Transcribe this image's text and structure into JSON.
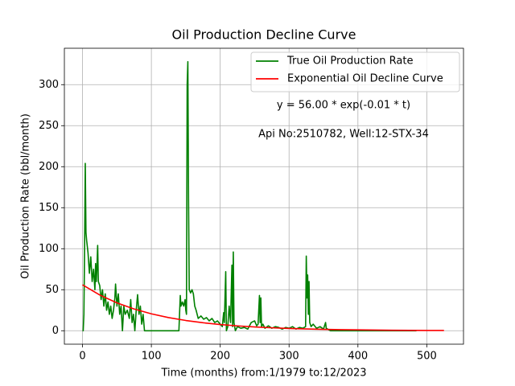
{
  "chart_data": {
    "type": "line",
    "title": "Oil Production Decline Curve",
    "xlabel": "Time (months) from:1/1979 to:12/2023",
    "ylabel": "Oil Production Rate (bbl/month)",
    "annotations": [
      "y = 56.00 * exp(-0.01 * t)",
      "Api No:2510782, Well:12-STX-34"
    ],
    "xlim": [
      -26.35,
      553.35
    ],
    "ylim": [
      -16.4,
      344.4
    ],
    "xticks": [
      0,
      100,
      200,
      300,
      400,
      500
    ],
    "yticks": [
      0,
      50,
      100,
      150,
      200,
      250,
      300
    ],
    "grid": true,
    "legend": "upper right",
    "series": [
      {
        "name": "True Oil Production Rate",
        "color": "#008000",
        "x": [
          0,
          1,
          2,
          3,
          4,
          5,
          6,
          8,
          10,
          12,
          14,
          16,
          18,
          19,
          20,
          21,
          22,
          23,
          25,
          27,
          29,
          31,
          33,
          35,
          37,
          39,
          41,
          43,
          45,
          47,
          48,
          50,
          52,
          54,
          56,
          58,
          60,
          62,
          65,
          68,
          70,
          72,
          74,
          76,
          78,
          80,
          82,
          84,
          86,
          88,
          90,
          100,
          120,
          140,
          142,
          143,
          145,
          147,
          149,
          150,
          151,
          152,
          153,
          154,
          155,
          157,
          159,
          161,
          163,
          165,
          168,
          172,
          176,
          180,
          184,
          188,
          192,
          196,
          200,
          203,
          205,
          206,
          208,
          209,
          211,
          213,
          215,
          217,
          218,
          219,
          220,
          222,
          225,
          230,
          235,
          240,
          245,
          250,
          253,
          255,
          257,
          258,
          259,
          260,
          262,
          265,
          270,
          275,
          280,
          285,
          290,
          295,
          300,
          305,
          310,
          315,
          320,
          324,
          325,
          326,
          327,
          328,
          329,
          330,
          332,
          335,
          340,
          345,
          350,
          353,
          354,
          360,
          400,
          450,
          485
        ],
        "values": [
          0,
          0,
          20,
          100,
          204,
          120,
          110,
          95,
          70,
          90,
          60,
          75,
          50,
          82,
          60,
          78,
          104,
          60,
          55,
          38,
          50,
          30,
          45,
          25,
          35,
          20,
          30,
          15,
          25,
          40,
          57,
          30,
          45,
          20,
          30,
          0,
          30,
          20,
          25,
          15,
          38,
          10,
          20,
          0,
          25,
          44,
          20,
          30,
          8,
          20,
          0,
          0,
          0,
          0,
          43,
          30,
          35,
          30,
          38,
          25,
          20,
          300,
          328,
          160,
          50,
          46,
          50,
          45,
          30,
          25,
          15,
          18,
          14,
          16,
          12,
          15,
          10,
          12,
          8,
          5,
          22,
          10,
          72,
          0,
          5,
          30,
          10,
          80,
          5,
          96,
          10,
          0,
          5,
          3,
          4,
          2,
          10,
          12,
          6,
          8,
          43,
          10,
          40,
          5,
          8,
          3,
          6,
          3,
          5,
          4,
          2,
          4,
          3,
          5,
          2,
          4,
          3,
          5,
          91,
          40,
          68,
          20,
          60,
          10,
          5,
          8,
          3,
          5,
          2,
          10,
          3,
          0,
          0,
          0,
          0
        ]
      },
      {
        "name": "Exponential Oil Decline Curve",
        "color": "#ff0000",
        "x": [
          0,
          25,
          50,
          75,
          100,
          125,
          150,
          175,
          200,
          225,
          250,
          275,
          300,
          325,
          350,
          375,
          400,
          425,
          450,
          475,
          500,
          525
        ],
        "values": [
          56,
          43.61,
          33.97,
          26.45,
          20.6,
          16.04,
          12.5,
          9.73,
          7.58,
          5.9,
          4.6,
          3.58,
          2.79,
          2.17,
          1.69,
          1.32,
          1.03,
          0.8,
          0.62,
          0.49,
          0.38,
          0.29
        ]
      }
    ]
  }
}
